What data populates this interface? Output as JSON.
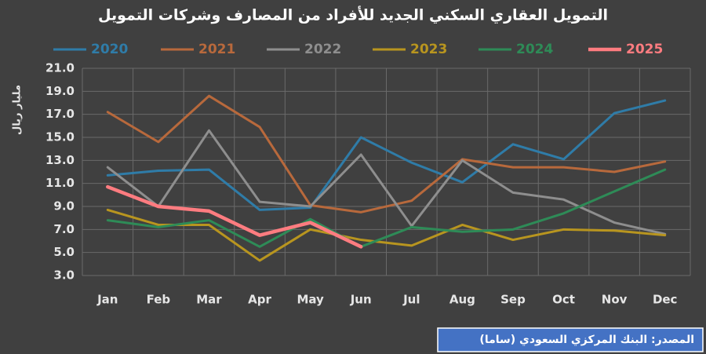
{
  "chart_data": {
    "type": "line",
    "title": "التمويل العقاري السكني الجديد للأفراد من المصارف وشركات التمويل",
    "y_label": "مليار ريال",
    "source": "المصدر: البنك المركزي السعودي (ساما)",
    "categories": [
      "Jan",
      "Feb",
      "Mar",
      "Apr",
      "May",
      "Jun",
      "Jul",
      "Aug",
      "Sep",
      "Oct",
      "Nov",
      "Dec"
    ],
    "series": [
      {
        "name": "2020",
        "color": "#2f7ca8",
        "values": [
          11.7,
          12.1,
          12.2,
          8.7,
          8.9,
          15.0,
          12.8,
          11.1,
          14.4,
          13.1,
          17.1,
          18.2
        ]
      },
      {
        "name": "2021",
        "color": "#b8693c",
        "values": [
          17.2,
          14.6,
          18.6,
          15.9,
          9.1,
          8.5,
          9.5,
          13.1,
          12.4,
          12.4,
          12.0,
          12.9
        ]
      },
      {
        "name": "2022",
        "color": "#8e8e8e",
        "values": [
          12.4,
          9.0,
          15.6,
          9.4,
          9.0,
          13.5,
          7.3,
          13.0,
          10.2,
          9.6,
          7.6,
          6.6
        ]
      },
      {
        "name": "2023",
        "color": "#b8951f",
        "values": [
          8.7,
          7.4,
          7.4,
          4.3,
          7.0,
          6.1,
          5.6,
          7.4,
          6.1,
          7.0,
          6.9,
          6.5
        ]
      },
      {
        "name": "2024",
        "color": "#2e8b57",
        "values": [
          7.8,
          7.2,
          7.8,
          5.5,
          7.9,
          5.5,
          7.2,
          6.8,
          7.0,
          8.4,
          10.3,
          12.2
        ]
      },
      {
        "name": "2025",
        "color": "#ff7c80",
        "values": [
          10.7,
          9.0,
          8.6,
          6.5,
          7.6,
          5.5,
          null,
          null,
          null,
          null,
          null,
          null
        ]
      }
    ],
    "ylim": [
      3,
      21
    ],
    "yticks": [
      {
        "value": 3,
        "label": "3.0"
      },
      {
        "value": 5,
        "label": "5.0"
      },
      {
        "value": 7,
        "label": "7.0"
      },
      {
        "value": 9,
        "label": "9.0"
      },
      {
        "value": 11,
        "label": "11.0"
      },
      {
        "value": 13,
        "label": "13.0"
      },
      {
        "value": 15,
        "label": "15.0"
      },
      {
        "value": 17,
        "label": "17.0"
      },
      {
        "value": 19,
        "label": "19.0"
      },
      {
        "value": 21,
        "label": "21.0"
      }
    ],
    "grid": true
  }
}
